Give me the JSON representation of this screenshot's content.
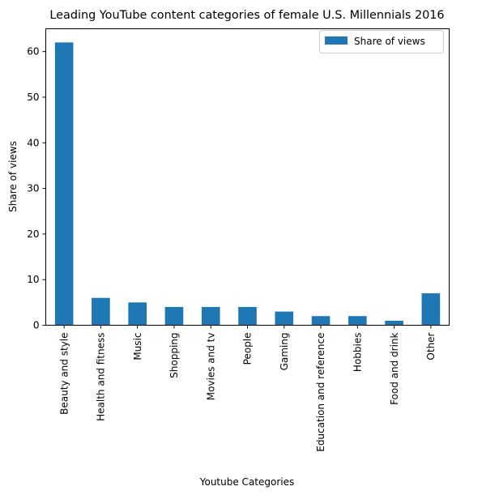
{
  "chart_data": {
    "type": "bar",
    "title": "Leading YouTube content categories of female U.S. Millennials 2016",
    "xlabel": "Youtube Categories",
    "ylabel": "Share of views",
    "ylim": [
      0,
      65
    ],
    "yticks": [
      0,
      10,
      20,
      30,
      40,
      50,
      60
    ],
    "grid": false,
    "legend_position": "top-right",
    "categories": [
      "Beauty and style",
      "Health and fitness",
      "Music",
      "Shopping",
      "Movies and tv",
      "People",
      "Gaming",
      "Education and reference",
      "Hobbies",
      "Food and drink",
      "Other"
    ],
    "series": [
      {
        "name": "Share of views",
        "color": "#1f77b4",
        "values": [
          62,
          6,
          5,
          4,
          4,
          4,
          3,
          2,
          2,
          1,
          7
        ]
      }
    ]
  }
}
